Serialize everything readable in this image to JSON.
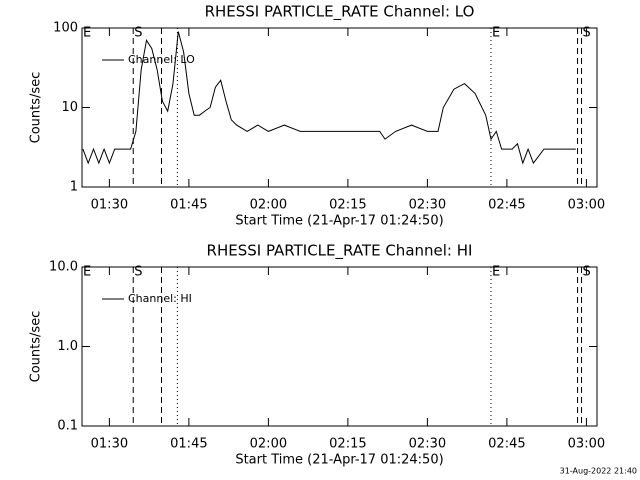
{
  "chart_data": [
    {
      "type": "line",
      "title": "RHESSI PARTICLE_RATE Channel: LO",
      "x_label": "Start Time (21-Apr-17 01:24:50)",
      "y_label": "Counts/sec",
      "log_y": true,
      "legend": "upper left",
      "xlim": [
        "01:24:50",
        "03:02:00"
      ],
      "xticks": [
        "01:30",
        "01:45",
        "02:00",
        "02:15",
        "02:30",
        "02:45",
        "03:00"
      ],
      "ylim": [
        1,
        100
      ],
      "yticks": [
        1,
        10,
        100
      ],
      "x": [
        "01:25",
        "01:26",
        "01:27",
        "01:28",
        "01:29",
        "01:30",
        "01:31",
        "01:32",
        "01:33",
        "01:34",
        "01:35",
        "01:36",
        "01:37",
        "01:38",
        "01:39",
        "01:40",
        "01:41",
        "01:42",
        "01:43",
        "01:44",
        "01:45",
        "01:46",
        "01:47",
        "01:48",
        "01:49",
        "01:50",
        "01:51",
        "01:52",
        "01:53",
        "01:54",
        "01:56",
        "01:58",
        "02:00",
        "02:03",
        "02:06",
        "02:09",
        "02:12",
        "02:15",
        "02:18",
        "02:21",
        "02:22",
        "02:24",
        "02:27",
        "02:30",
        "02:32",
        "02:33",
        "02:35",
        "02:37",
        "02:39",
        "02:41",
        "02:42",
        "02:43",
        "02:44",
        "02:45",
        "02:46",
        "02:47",
        "02:48",
        "02:49",
        "02:50",
        "02:52",
        "02:54",
        "02:56",
        "02:58"
      ],
      "series": [
        {
          "name": "Channel: LO",
          "color": "#000000",
          "values": [
            3,
            2,
            3,
            2,
            3,
            2,
            3,
            3,
            3,
            3,
            5,
            30,
            70,
            55,
            30,
            12,
            9,
            20,
            90,
            50,
            15,
            8,
            8,
            9,
            10,
            18,
            22,
            12,
            7,
            6,
            5,
            6,
            5,
            6,
            5,
            5,
            5,
            5,
            5,
            5,
            4,
            5,
            6,
            5,
            5,
            10,
            17,
            20,
            15,
            8,
            4,
            5,
            3,
            3,
            3,
            3.5,
            2,
            3,
            2,
            3,
            3,
            3,
            3
          ]
        }
      ],
      "markers": [
        {
          "x": "01:24:50",
          "style": "solid",
          "label": "E"
        },
        {
          "x": "01:34:30",
          "style": "dashed",
          "label": "S"
        },
        {
          "x": "01:39:50",
          "style": "dashed"
        },
        {
          "x": "01:42:50",
          "style": "dotted"
        },
        {
          "x": "02:42:00",
          "style": "dotted",
          "label": "E"
        },
        {
          "x": "02:58:20",
          "style": "dashed"
        },
        {
          "x": "02:59:05",
          "style": "dashed",
          "label": "S"
        }
      ]
    },
    {
      "type": "line",
      "title": "RHESSI PARTICLE_RATE Channel: HI",
      "x_label": "Start Time (21-Apr-17 01:24:50)",
      "y_label": "Counts/sec",
      "log_y": true,
      "legend": "upper left",
      "xlim": [
        "01:24:50",
        "03:02:00"
      ],
      "xticks": [
        "01:30",
        "01:45",
        "02:00",
        "02:15",
        "02:30",
        "02:45",
        "03:00"
      ],
      "ylim": [
        0.1,
        10
      ],
      "yticks": [
        0.1,
        {
          "value": 1,
          "label": "1.0"
        },
        {
          "value": 10,
          "label": "10.0"
        }
      ],
      "x": [],
      "series": [
        {
          "name": "Channel: HI",
          "color": "#000000",
          "values": []
        }
      ],
      "markers": [
        {
          "x": "01:24:50",
          "style": "solid",
          "label": "E"
        },
        {
          "x": "01:34:30",
          "style": "dashed",
          "label": "S"
        },
        {
          "x": "01:39:50",
          "style": "dashed"
        },
        {
          "x": "01:42:50",
          "style": "dotted"
        },
        {
          "x": "02:42:00",
          "style": "dotted",
          "label": "E"
        },
        {
          "x": "02:58:20",
          "style": "dashed"
        },
        {
          "x": "02:59:05",
          "style": "dashed",
          "label": "S"
        }
      ]
    }
  ],
  "footer": "31-Aug-2022 21:40"
}
